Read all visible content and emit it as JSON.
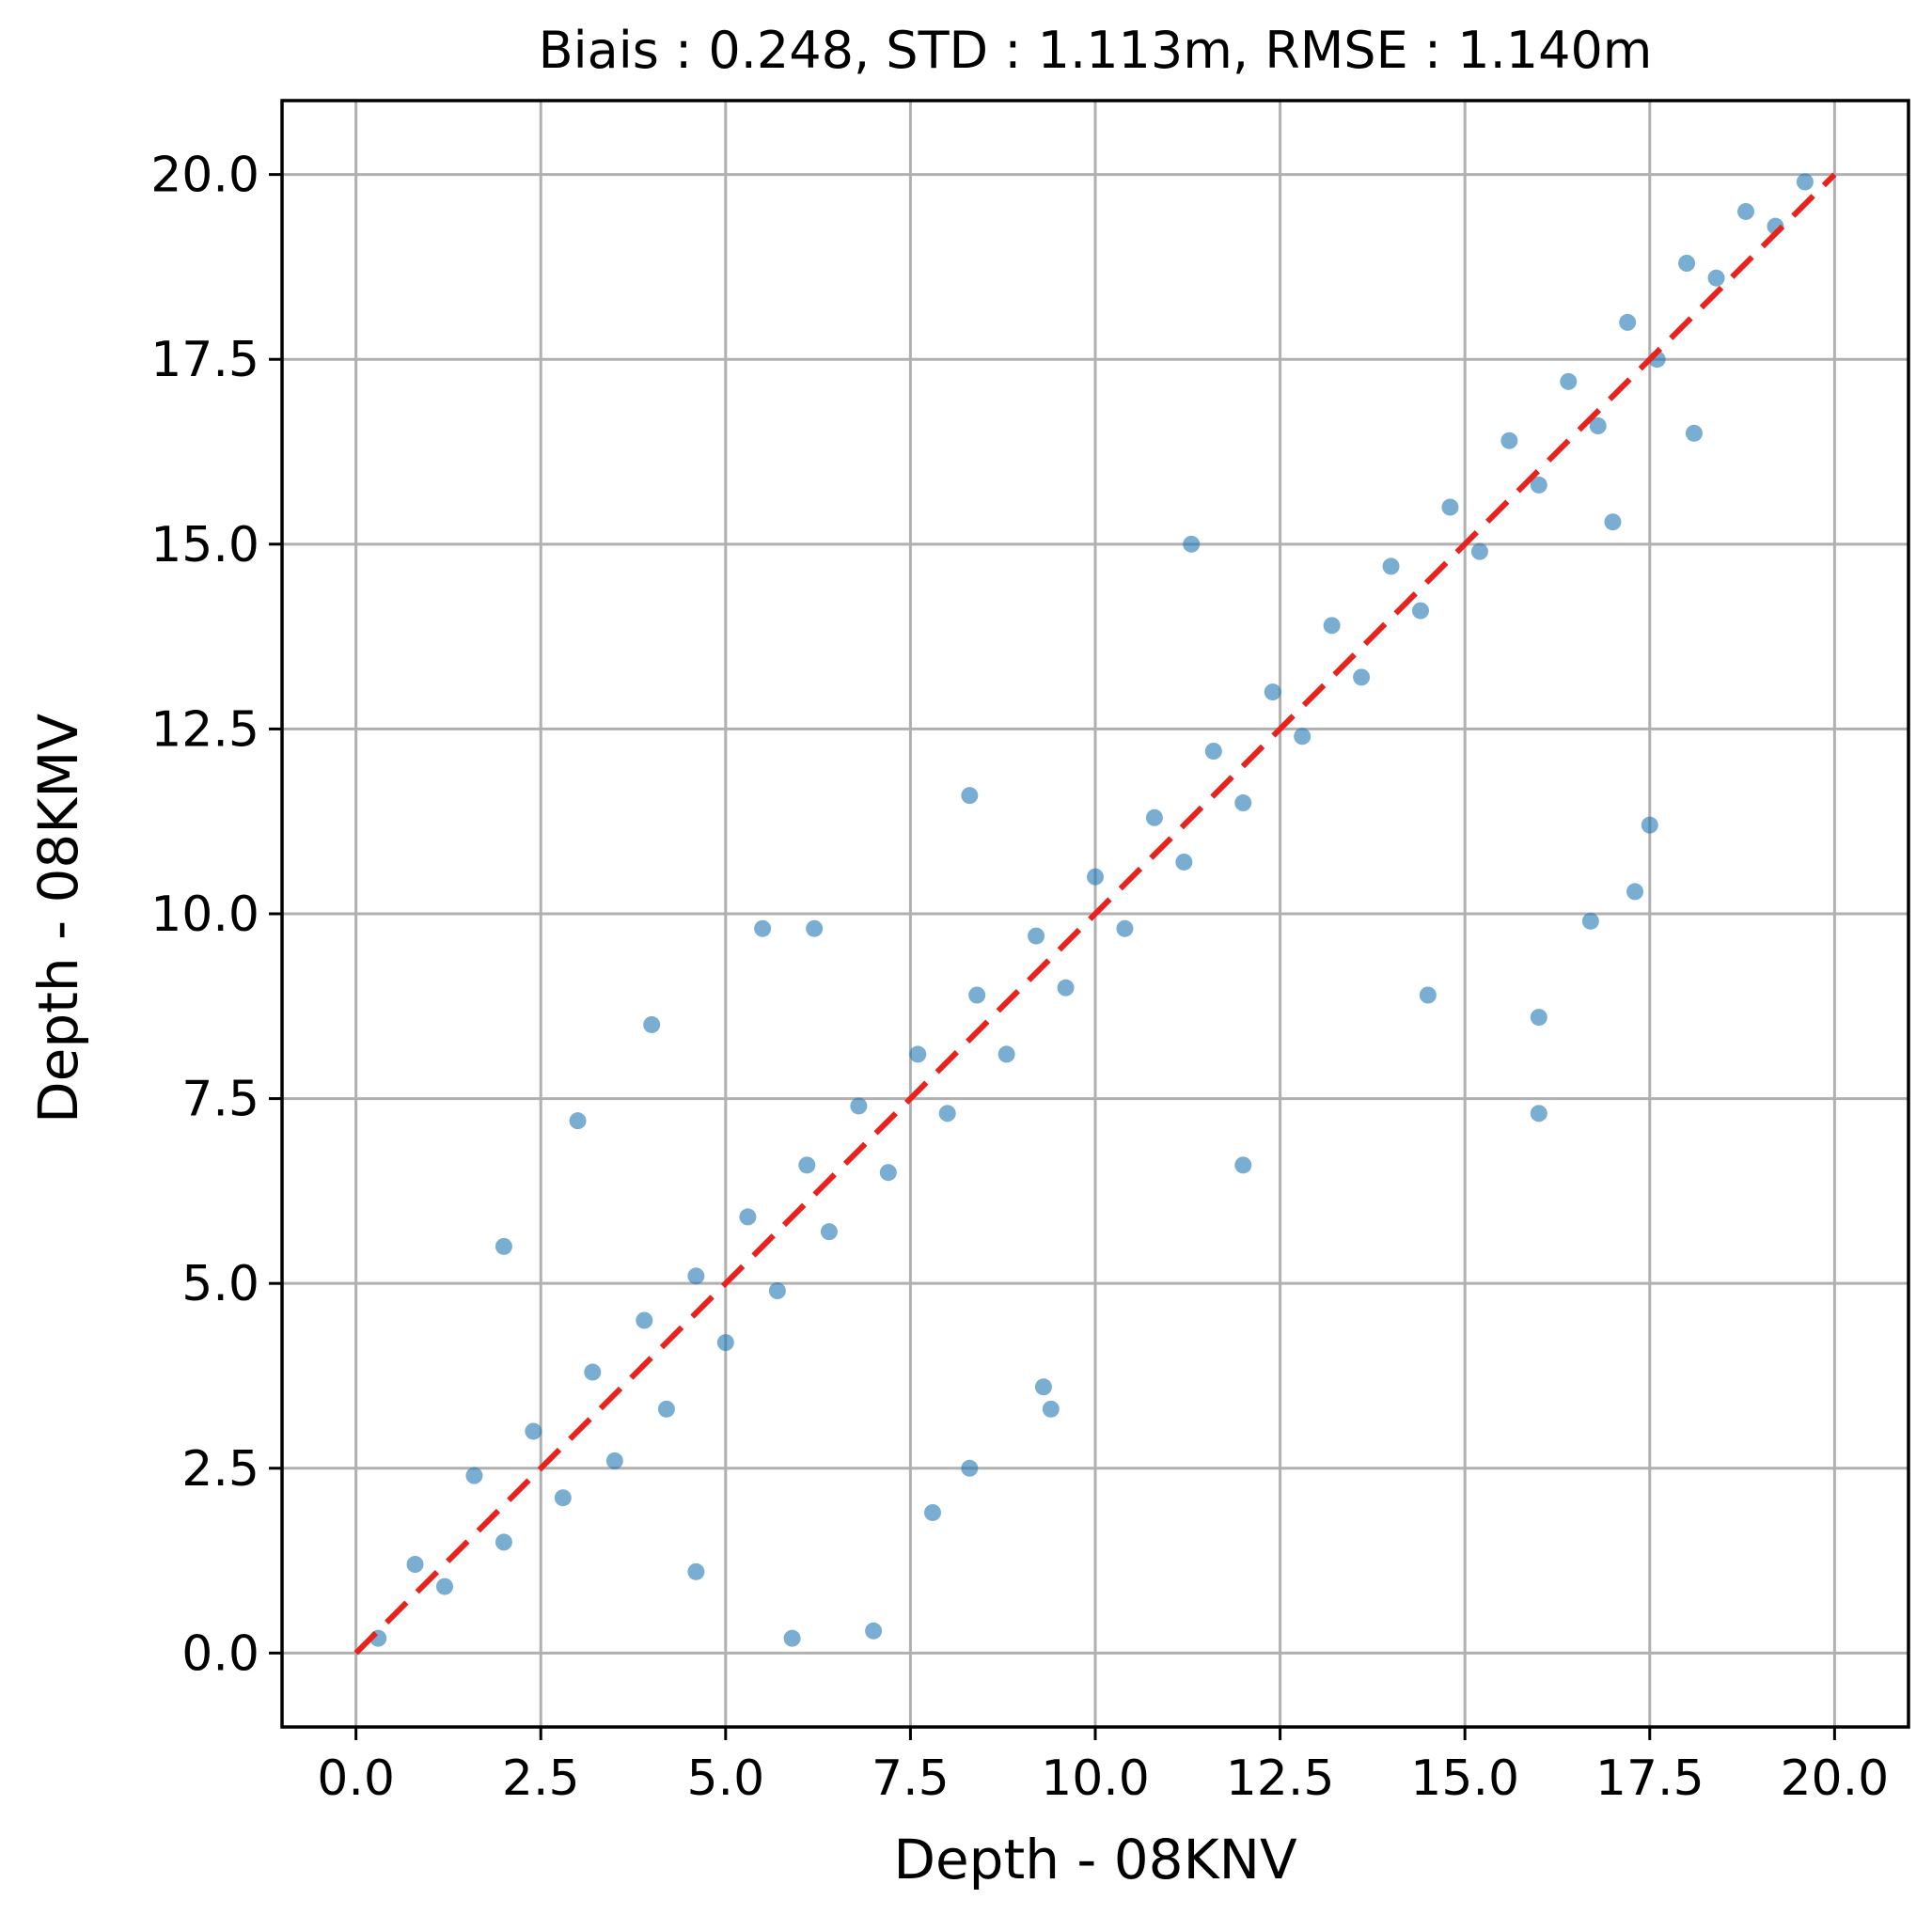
{
  "chart_data": {
    "type": "scatter",
    "title": "Biais : 0.248, STD : 1.113m, RMSE : 1.140m",
    "xlabel": "Depth - 08KNV",
    "ylabel": "Depth - 08KMV",
    "xlim": [
      -1.0,
      21.0
    ],
    "ylim": [
      -1.0,
      21.0
    ],
    "x_ticks": [
      0.0,
      2.5,
      5.0,
      7.5,
      10.0,
      12.5,
      15.0,
      17.5,
      20.0
    ],
    "y_ticks": [
      0.0,
      2.5,
      5.0,
      7.5,
      10.0,
      12.5,
      15.0,
      17.5,
      20.0
    ],
    "x_tick_labels": [
      "0.0",
      "2.5",
      "5.0",
      "7.5",
      "10.0",
      "12.5",
      "15.0",
      "17.5",
      "20.0"
    ],
    "y_tick_labels": [
      "0.0",
      "2.5",
      "5.0",
      "7.5",
      "10.0",
      "12.5",
      "15.0",
      "17.5",
      "20.0"
    ],
    "grid": true,
    "legend": "none",
    "point_color": "#1f77b4",
    "reference_line": {
      "style": "dashed",
      "color": "#e8221c",
      "x": [
        0.0,
        20.0
      ],
      "y": [
        0.0,
        20.0
      ]
    },
    "series": [
      {
        "values": [
          [
            0.3,
            0.2
          ],
          [
            0.8,
            1.2
          ],
          [
            1.2,
            0.9
          ],
          [
            1.6,
            2.4
          ],
          [
            2.0,
            1.5
          ],
          [
            2.4,
            3.0
          ],
          [
            2.8,
            2.1
          ],
          [
            3.2,
            3.8
          ],
          [
            3.5,
            2.6
          ],
          [
            3.9,
            4.5
          ],
          [
            4.2,
            3.3
          ],
          [
            4.6,
            5.1
          ],
          [
            5.0,
            4.2
          ],
          [
            5.3,
            5.9
          ],
          [
            5.7,
            4.9
          ],
          [
            6.1,
            6.6
          ],
          [
            6.4,
            5.7
          ],
          [
            6.8,
            7.4
          ],
          [
            7.2,
            6.5
          ],
          [
            7.6,
            8.1
          ],
          [
            8.0,
            7.3
          ],
          [
            8.4,
            8.9
          ],
          [
            8.8,
            8.1
          ],
          [
            9.2,
            9.7
          ],
          [
            9.6,
            9.0
          ],
          [
            10.0,
            10.5
          ],
          [
            10.4,
            9.8
          ],
          [
            10.8,
            11.3
          ],
          [
            11.2,
            10.7
          ],
          [
            11.6,
            12.2
          ],
          [
            12.0,
            11.5
          ],
          [
            12.4,
            13.0
          ],
          [
            12.8,
            12.4
          ],
          [
            13.2,
            13.9
          ],
          [
            13.6,
            13.2
          ],
          [
            14.0,
            14.7
          ],
          [
            14.4,
            14.1
          ],
          [
            14.8,
            15.5
          ],
          [
            15.2,
            14.9
          ],
          [
            15.6,
            16.4
          ],
          [
            16.0,
            15.8
          ],
          [
            16.4,
            17.2
          ],
          [
            16.8,
            16.6
          ],
          [
            17.2,
            18.0
          ],
          [
            17.6,
            17.5
          ],
          [
            18.0,
            18.8
          ],
          [
            18.4,
            18.6
          ],
          [
            18.8,
            19.5
          ],
          [
            19.2,
            19.3
          ],
          [
            19.6,
            19.9
          ],
          [
            2.0,
            5.5
          ],
          [
            3.0,
            7.2
          ],
          [
            4.0,
            8.5
          ],
          [
            5.5,
            9.8
          ],
          [
            6.2,
            9.8
          ],
          [
            4.6,
            1.1
          ],
          [
            5.9,
            0.2
          ],
          [
            7.0,
            0.3
          ],
          [
            8.3,
            2.5
          ],
          [
            7.8,
            1.9
          ],
          [
            9.3,
            3.6
          ],
          [
            9.4,
            3.3
          ],
          [
            12.0,
            6.6
          ],
          [
            14.5,
            8.9
          ],
          [
            16.0,
            8.6
          ],
          [
            16.0,
            7.3
          ],
          [
            16.7,
            9.9
          ],
          [
            17.3,
            10.3
          ],
          [
            17.5,
            11.2
          ],
          [
            18.1,
            16.5
          ],
          [
            8.3,
            11.6
          ],
          [
            11.3,
            15.0
          ],
          [
            17.0,
            15.3
          ]
        ]
      }
    ]
  }
}
